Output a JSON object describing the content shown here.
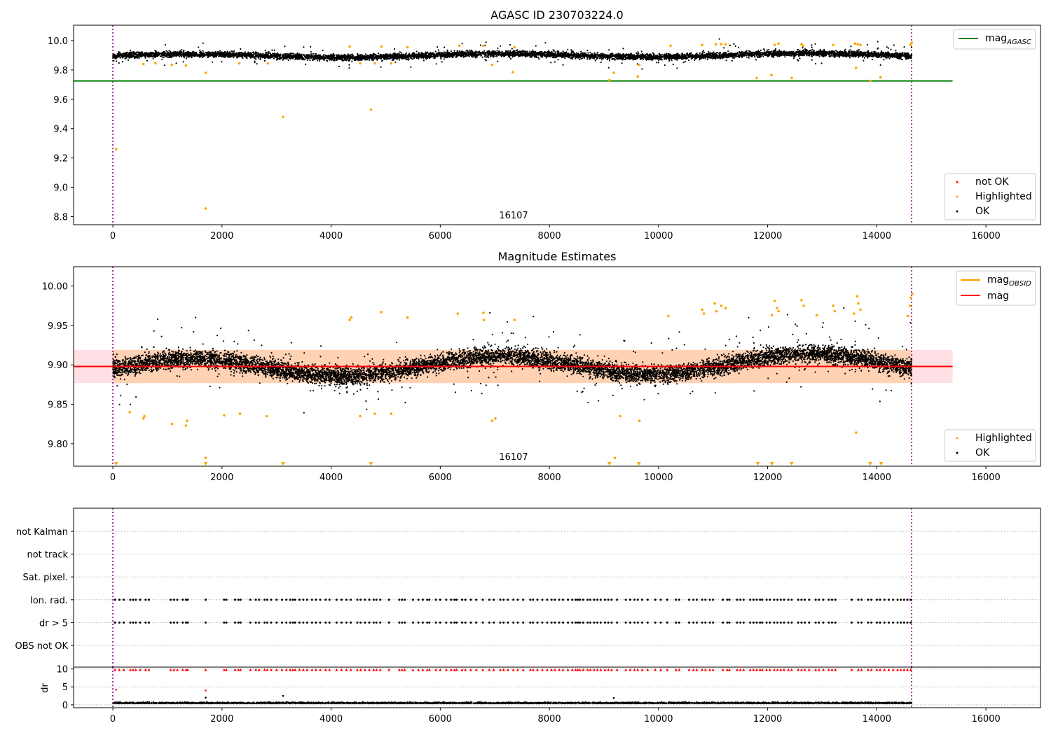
{
  "colors": {
    "ok": "#000000",
    "highlighted": "#ffa500",
    "not_ok": "#ff0000",
    "agasc_line": "#008000",
    "mag_line": "#ff0000",
    "mag_obsid_line": "#ffa500",
    "band_inner": "#ffd2b4",
    "band_outer": "#ffe0e4",
    "obs_boundary": "#800080",
    "grid": "#b0b0b0"
  },
  "chart_data": [
    {
      "type": "scatter",
      "title": "AGASC ID 230703224.0",
      "x_ticks": [
        "0",
        "2000",
        "4000",
        "6000",
        "8000",
        "10000",
        "12000",
        "14000",
        "16000"
      ],
      "xlim": [
        -720,
        17000
      ],
      "y_ticks": [
        "8.8",
        "9.0",
        "9.2",
        "9.4",
        "9.6",
        "9.8",
        "10.0"
      ],
      "ylim": [
        8.745,
        10.105
      ],
      "annotation": "16107",
      "mag_agasc": 9.725,
      "obs_boundaries": [
        0,
        14640
      ],
      "legend_upper": [
        {
          "label": "mag",
          "subscript": "AGASC",
          "kind": "line"
        }
      ],
      "legend_lower": [
        {
          "label": "not OK",
          "kind": "dot"
        },
        {
          "label": "Highlighted",
          "kind": "dot"
        },
        {
          "label": "OK",
          "kind": "dot"
        }
      ],
      "ok_band": {
        "x_range": [
          0,
          14640
        ],
        "center": 9.895,
        "spread": 0.035
      },
      "highlighted_points": [
        [
          60,
          9.26
        ],
        [
          1700,
          8.855
        ],
        [
          3120,
          9.48
        ],
        [
          4730,
          9.53
        ],
        [
          1700,
          9.78
        ],
        [
          9100,
          9.73
        ],
        [
          9180,
          9.78
        ],
        [
          9620,
          9.755
        ],
        [
          11800,
          9.745
        ],
        [
          12070,
          9.765
        ],
        [
          12440,
          9.745
        ],
        [
          13620,
          9.815
        ],
        [
          13880,
          9.725
        ],
        [
          14070,
          9.75
        ],
        [
          7330,
          9.785
        ],
        [
          6950,
          9.835
        ],
        [
          2840,
          9.845
        ],
        [
          2320,
          9.845
        ],
        [
          1080,
          9.835
        ],
        [
          1340,
          9.83
        ],
        [
          780,
          9.845
        ],
        [
          560,
          9.84
        ],
        [
          5100,
          9.845
        ],
        [
          4530,
          9.845
        ],
        [
          4800,
          9.845
        ],
        [
          4340,
          9.96
        ],
        [
          4920,
          9.96
        ],
        [
          5400,
          9.955
        ],
        [
          6350,
          9.965
        ],
        [
          6790,
          9.965
        ],
        [
          7360,
          9.955
        ],
        [
          9650,
          9.835
        ],
        [
          10220,
          9.965
        ],
        [
          10800,
          9.97
        ],
        [
          11050,
          9.975
        ],
        [
          11150,
          9.975
        ],
        [
          11230,
          9.975
        ],
        [
          12130,
          9.97
        ],
        [
          12200,
          9.98
        ],
        [
          12620,
          9.975
        ],
        [
          12650,
          9.965
        ],
        [
          13200,
          9.97
        ],
        [
          13600,
          9.98
        ],
        [
          13650,
          9.975
        ],
        [
          13700,
          9.97
        ],
        [
          14620,
          9.97
        ],
        [
          14640,
          9.985
        ]
      ]
    },
    {
      "type": "scatter",
      "title": "Magnitude Estimates",
      "x_ticks": [
        "0",
        "2000",
        "4000",
        "6000",
        "8000",
        "10000",
        "12000",
        "14000",
        "16000"
      ],
      "xlim": [
        -720,
        17000
      ],
      "y_ticks": [
        "9.80",
        "9.85",
        "9.90",
        "9.95",
        "10.00"
      ],
      "ylim": [
        9.7715,
        10.0245
      ],
      "annotation": "16107",
      "mag": 9.898,
      "mag_band_inner": [
        9.877,
        9.919
      ],
      "obs_boundaries": [
        0,
        14640
      ],
      "legend_upper": [
        {
          "label": "mag",
          "subscript": "OBSID",
          "kind": "line"
        },
        {
          "label": "mag",
          "kind": "line"
        }
      ],
      "legend_lower": [
        {
          "label": "Highlighted",
          "kind": "dot"
        },
        {
          "label": "OK",
          "kind": "dot"
        }
      ],
      "ok_band": {
        "x_range": [
          0,
          14640
        ],
        "center": 9.895,
        "spread": 0.02
      },
      "highlighted_points": [
        [
          4340,
          9.957
        ],
        [
          4370,
          9.96
        ],
        [
          4920,
          9.967
        ],
        [
          5400,
          9.96
        ],
        [
          6320,
          9.965
        ],
        [
          6790,
          9.966
        ],
        [
          6800,
          9.957
        ],
        [
          7360,
          9.957
        ],
        [
          10180,
          9.962
        ],
        [
          10800,
          9.97
        ],
        [
          10830,
          9.965
        ],
        [
          11030,
          9.978
        ],
        [
          11060,
          9.968
        ],
        [
          11150,
          9.975
        ],
        [
          11230,
          9.972
        ],
        [
          12080,
          9.963
        ],
        [
          12130,
          9.981
        ],
        [
          12170,
          9.972
        ],
        [
          12200,
          9.968
        ],
        [
          12620,
          9.982
        ],
        [
          12660,
          9.975
        ],
        [
          12900,
          9.963
        ],
        [
          13200,
          9.975
        ],
        [
          13230,
          9.968
        ],
        [
          13580,
          9.965
        ],
        [
          13640,
          9.987
        ],
        [
          13660,
          9.978
        ],
        [
          13700,
          9.97
        ],
        [
          14570,
          9.962
        ],
        [
          14610,
          9.975
        ],
        [
          14630,
          9.985
        ],
        [
          14650,
          9.99
        ],
        [
          310,
          9.84
        ],
        [
          560,
          9.832
        ],
        [
          580,
          9.835
        ],
        [
          1080,
          9.825
        ],
        [
          1340,
          9.823
        ],
        [
          1360,
          9.829
        ],
        [
          2040,
          9.836
        ],
        [
          2330,
          9.838
        ],
        [
          2820,
          9.835
        ],
        [
          4530,
          9.835
        ],
        [
          4800,
          9.838
        ],
        [
          5100,
          9.838
        ],
        [
          6950,
          9.829
        ],
        [
          7010,
          9.832
        ],
        [
          9300,
          9.835
        ],
        [
          9650,
          9.829
        ],
        [
          13620,
          9.814
        ],
        [
          1700,
          9.782
        ],
        [
          9200,
          9.782
        ]
      ],
      "highlighted_below_range_x": [
        60,
        1700,
        3120,
        4730,
        9100,
        9640,
        11820,
        12080,
        12440,
        13880,
        14080
      ]
    },
    {
      "type": "scatter",
      "y_categories": [
        "not Kalman",
        "not track",
        "Sat. pixel.",
        "Ion. rad.",
        "dr > 5",
        "OBS not OK"
      ],
      "flag_x": [
        40,
        120,
        200,
        320,
        370,
        420,
        500,
        600,
        660,
        1060,
        1120,
        1180,
        1280,
        1340,
        1370,
        1700,
        2040,
        2080,
        2240,
        2300,
        2340,
        2520,
        2620,
        2680,
        2780,
        2830,
        2900,
        3000,
        3100,
        3180,
        3250,
        3300,
        3340,
        3420,
        3490,
        3560,
        3650,
        3720,
        3800,
        3900,
        3970,
        4100,
        4190,
        4280,
        4360,
        4480,
        4540,
        4620,
        4700,
        4780,
        4830,
        4900,
        5060,
        5250,
        5300,
        5350,
        5500,
        5600,
        5680,
        5760,
        5800,
        5920,
        6000,
        6110,
        6200,
        6260,
        6300,
        6400,
        6460,
        6560,
        6660,
        6780,
        6900,
        6980,
        7100,
        7160,
        7240,
        7340,
        7420,
        7520,
        7650,
        7700,
        7780,
        7870,
        7960,
        8040,
        8100,
        8180,
        8250,
        8340,
        8420,
        8480,
        8520,
        8560,
        8620,
        8700,
        8750,
        8820,
        8880,
        8940,
        9020,
        9080,
        9140,
        9240,
        9400,
        9480,
        9560,
        9620,
        9700,
        9800,
        9940,
        10040,
        10160,
        10320,
        10380,
        10560,
        10640,
        10700,
        10800,
        10860,
        10940,
        11000,
        11180,
        11260,
        11300,
        11440,
        11500,
        11560,
        11680,
        11740,
        11800,
        11860,
        11900,
        11980,
        12040,
        12120,
        12180,
        12240,
        12300,
        12380,
        12440,
        12560,
        12620,
        12680,
        12760,
        12880,
        12940,
        13020,
        13120,
        13180,
        13240,
        13540,
        13660,
        13720,
        13840,
        13900,
        14000,
        14060,
        14140,
        14220,
        14300,
        14380,
        14440,
        14500,
        14560,
        14620
      ],
      "flag_rows": [
        "Ion. rad.",
        "dr > 5"
      ],
      "x_ticks": [
        "0",
        "2000",
        "4000",
        "6000",
        "8000",
        "10000",
        "12000",
        "14000",
        "16000"
      ],
      "xlim": [
        -720,
        17000
      ],
      "obs_boundaries": [
        0,
        14640
      ]
    },
    {
      "type": "scatter",
      "ylabel": "dr",
      "y_ticks": [
        "0",
        "5",
        "10"
      ],
      "ylim": [
        -0.8,
        10.5
      ],
      "x_ticks": [
        "0",
        "2000",
        "4000",
        "6000",
        "8000",
        "10000",
        "12000",
        "14000",
        "16000"
      ],
      "xlim": [
        -720,
        17000
      ],
      "obs_boundaries": [
        0,
        14640
      ],
      "clipped_marker_y": 9.8,
      "red_points": [
        [
          60,
          4.2
        ],
        [
          1700,
          4.0
        ]
      ],
      "black_points": [
        [
          3120,
          2.5
        ],
        [
          9180,
          1.9
        ],
        [
          1700,
          2.0
        ]
      ]
    }
  ]
}
